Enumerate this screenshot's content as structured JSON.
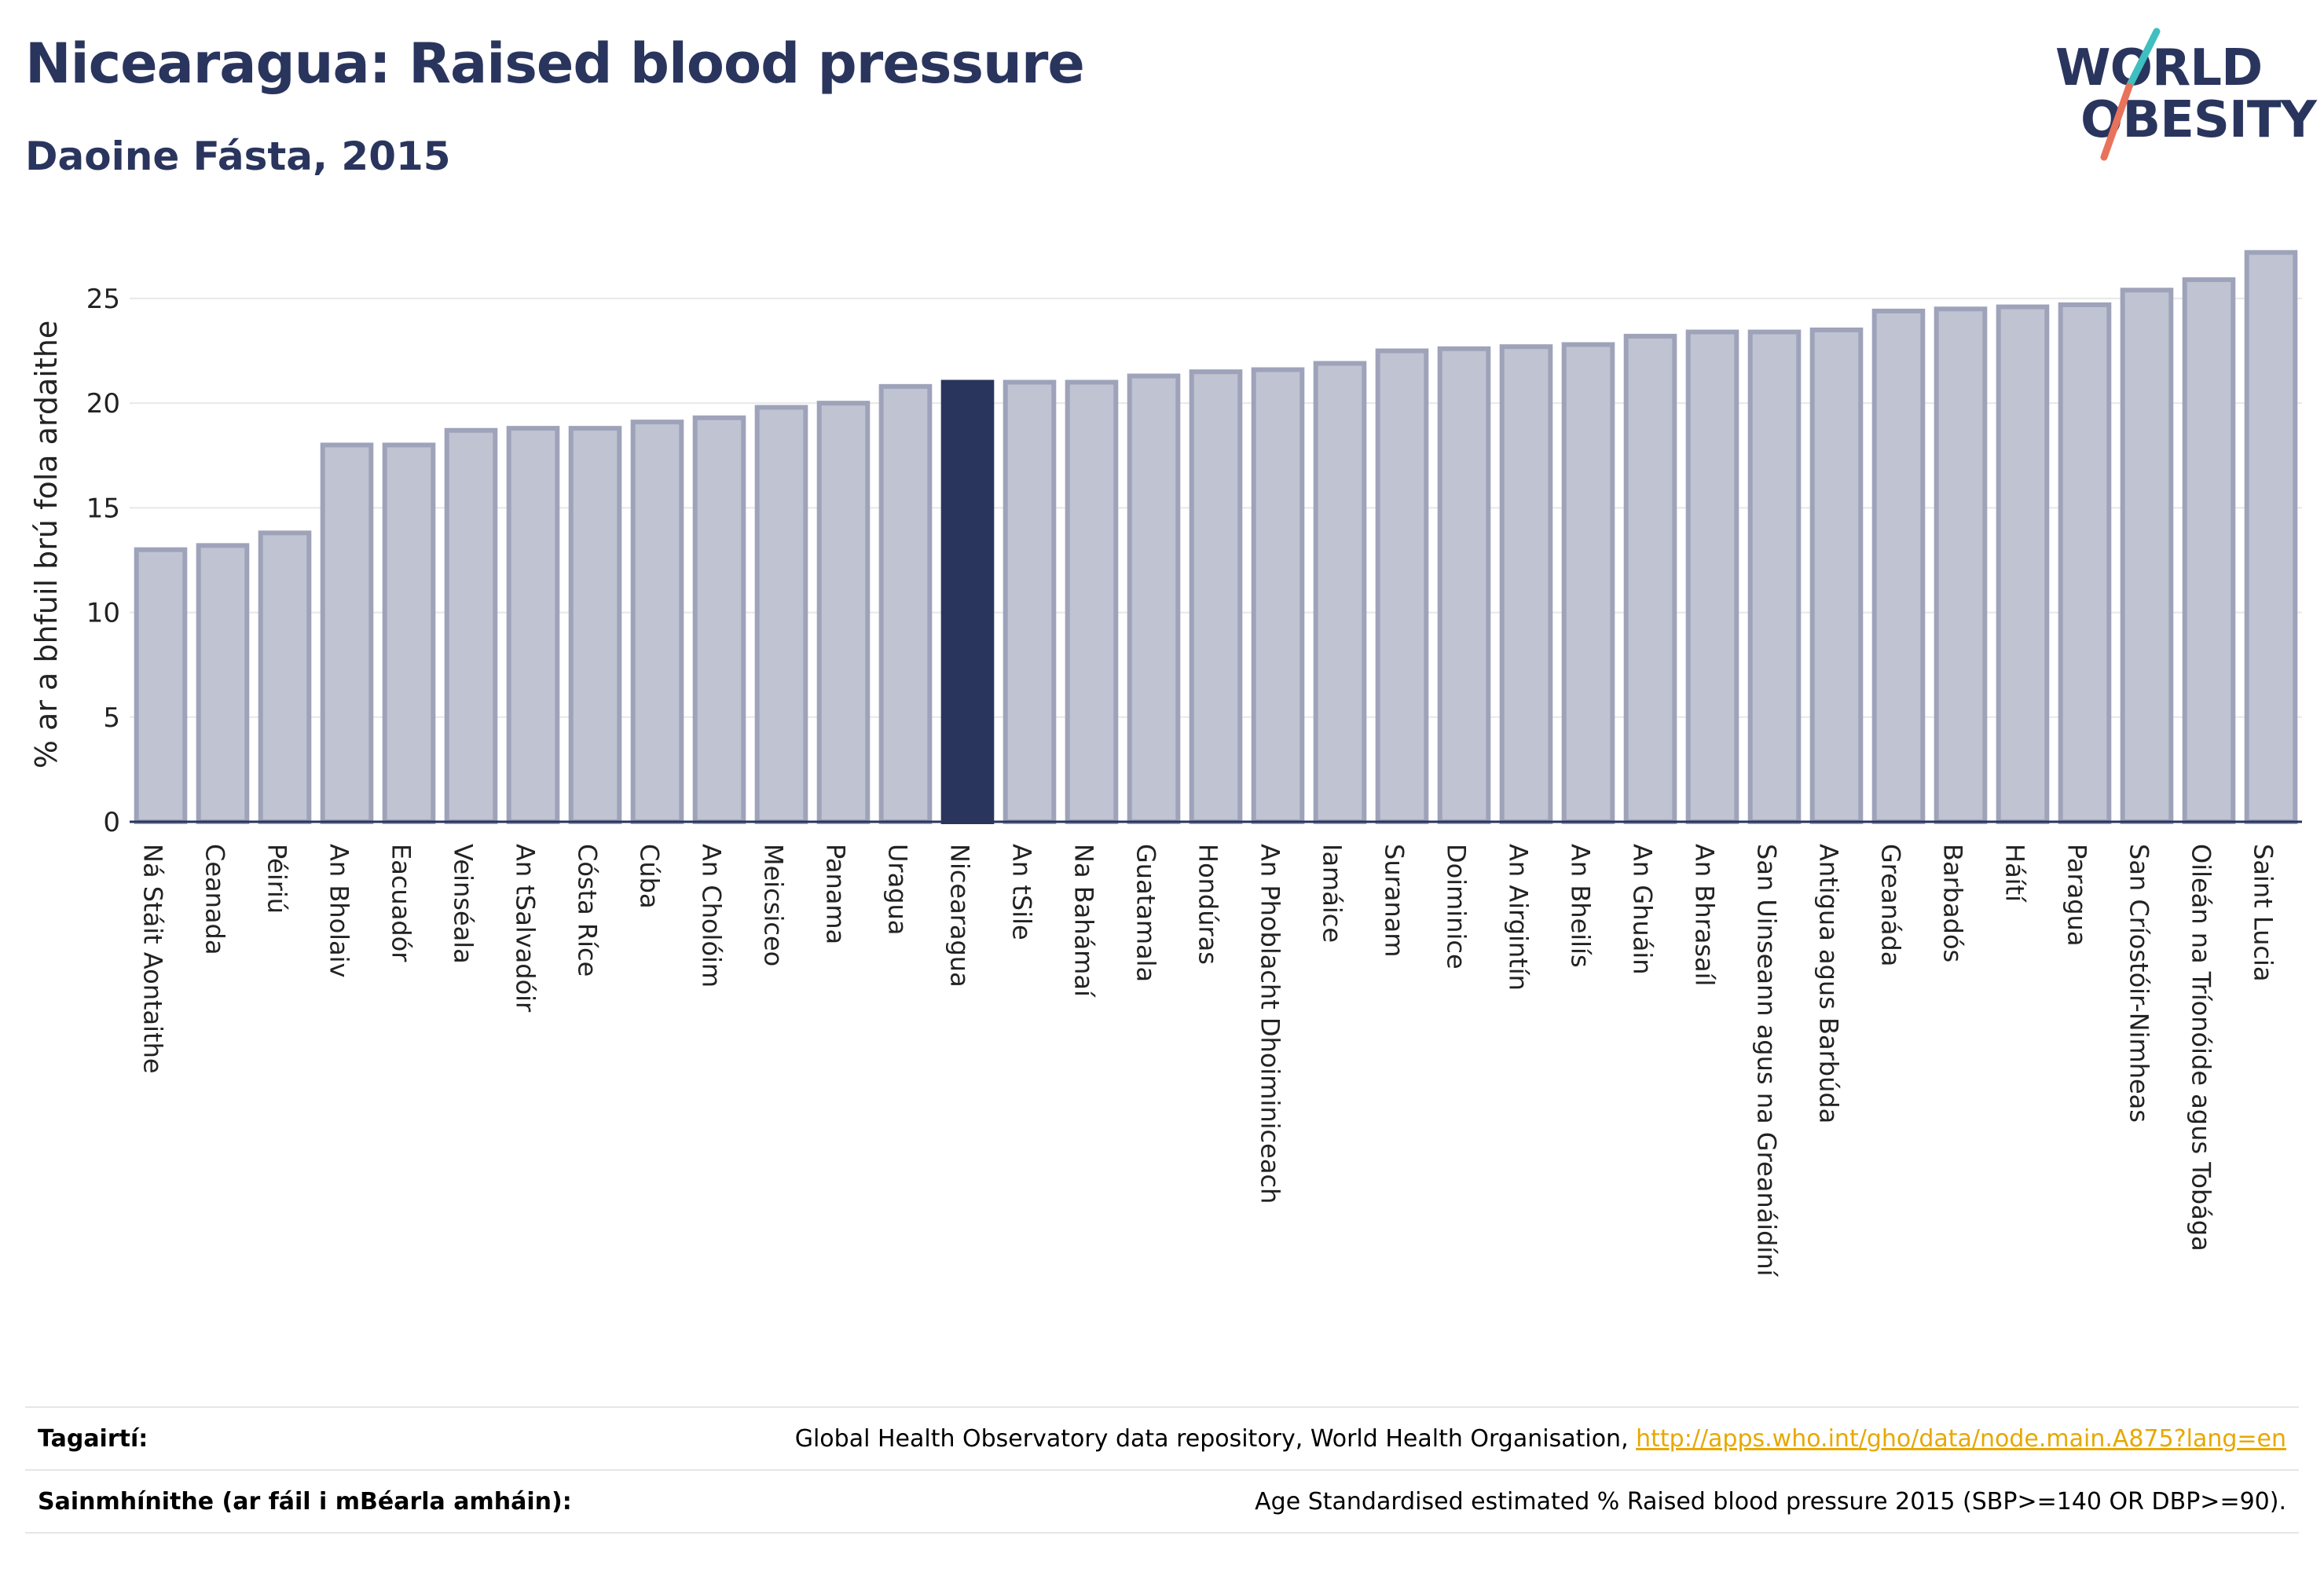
{
  "header": {
    "title": "Nicearagua: Raised blood pressure",
    "subtitle": "Daoine Fásta, 2015"
  },
  "logo": {
    "line1": "WORLD",
    "line2": "OBESITY",
    "accent_teal": "#3fbfbf",
    "accent_coral": "#e8735a"
  },
  "colors": {
    "bar_fill": "#c0c3d1",
    "bar_stroke": "#9ea3ba",
    "highlight_fill": "#2a355e",
    "text": "#2a355e",
    "link": "#e6a800"
  },
  "chart_data": {
    "type": "bar",
    "title": "Nicearagua: Raised blood pressure",
    "subtitle": "Daoine Fásta, 2015",
    "xlabel": "",
    "ylabel": "% ar a bhfuil brú fola ardaithe",
    "ylim": [
      0,
      28
    ],
    "yticks": [
      0,
      5,
      10,
      15,
      20,
      25
    ],
    "grid": true,
    "highlight": "Nicearagua",
    "categories": [
      "Ná Stáit Aontaithe",
      "Ceanada",
      "Péiriú",
      "An Bholaiv",
      "Eacuadór",
      "Veinséala",
      "An tSalvadóir",
      "Cósta Ríce",
      "Cúba",
      "An Cholóim",
      "Meicsiceo",
      "Panama",
      "Uragua",
      "Nicearagua",
      "An tSile",
      "Na Bahámaí",
      "Guatamala",
      "Hondúras",
      "An Phoblacht Dhoiminiceach",
      "Iamáice",
      "Suranam",
      "Doiminice",
      "An Airgintín",
      "An Bheilís",
      "An Ghuáin",
      "An Bhrasaíl",
      "San Uinseann agus na Greanáidíní",
      "Antigua agus Barbúda",
      "Greanáda",
      "Barbadós",
      "Háítí",
      "Paragua",
      "San Críostóir-Nimheas",
      "Oileán na Tríonóide agus Tobága",
      "Saint Lucia"
    ],
    "values": [
      13.0,
      13.2,
      13.8,
      18.0,
      18.0,
      18.7,
      18.8,
      18.8,
      19.1,
      19.3,
      19.8,
      20.0,
      20.8,
      21.0,
      21.0,
      21.0,
      21.3,
      21.5,
      21.6,
      21.9,
      22.5,
      22.6,
      22.7,
      22.8,
      23.2,
      23.4,
      23.4,
      23.5,
      24.4,
      24.5,
      24.6,
      24.7,
      25.4,
      25.9,
      27.2
    ]
  },
  "footer": {
    "references_label": "Tagairtí:",
    "references_text": "Global Health Observatory data repository, World Health Organisation, ",
    "references_link": "http://apps.who.int/gho/data/node.main.A875?lang=en",
    "definitions_label": "Sainmhínithe (ar fáil i mBéarla amháin):",
    "definitions_text": "Age Standardised estimated % Raised blood pressure 2015 (SBP>=140 OR DBP>=90)."
  }
}
